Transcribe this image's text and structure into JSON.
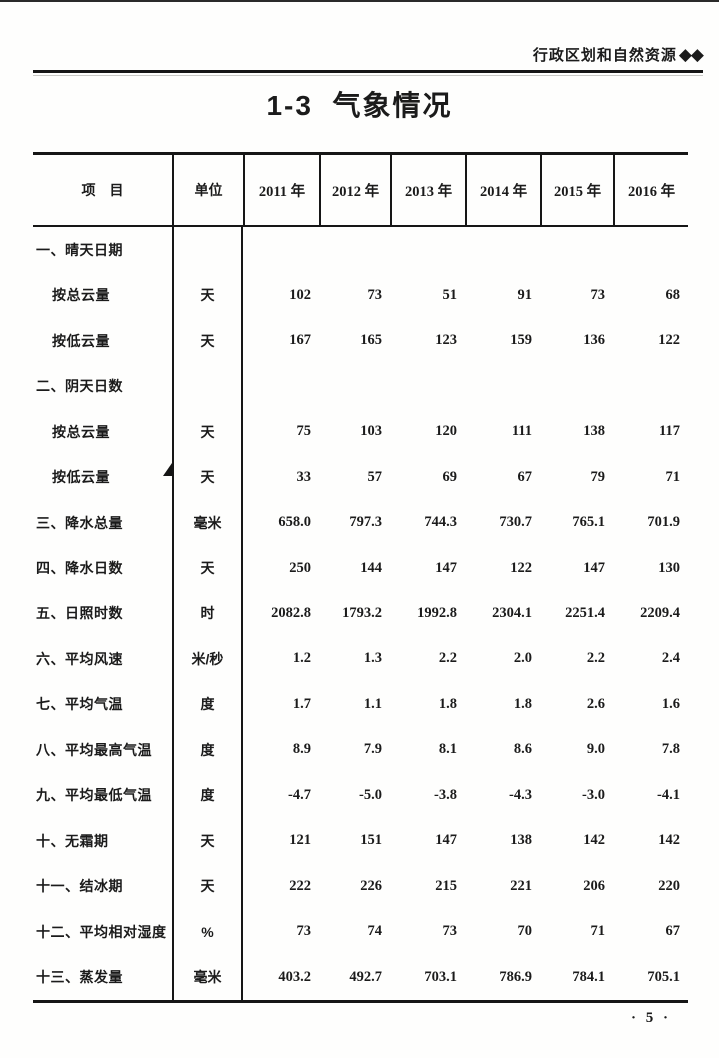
{
  "page": {
    "header_right": "行政区划和自然资源",
    "header_diamonds": "◆◆",
    "title": "1-3  气象情况",
    "page_number": "· 5 ·"
  },
  "table": {
    "columns": [
      "项　目",
      "单位",
      "2011 年",
      "2012 年",
      "2013 年",
      "2014 年",
      "2015 年",
      "2016 年"
    ],
    "rows": [
      {
        "item": "一、晴天日期",
        "indent": false,
        "unit": "",
        "values": [
          "",
          "",
          "",
          "",
          "",
          ""
        ]
      },
      {
        "item": "按总云量",
        "indent": true,
        "unit": "天",
        "values": [
          "102",
          "73",
          "51",
          "91",
          "73",
          "68"
        ]
      },
      {
        "item": "按低云量",
        "indent": true,
        "unit": "天",
        "values": [
          "167",
          "165",
          "123",
          "159",
          "136",
          "122"
        ]
      },
      {
        "item": "二、阴天日数",
        "indent": false,
        "unit": "",
        "values": [
          "",
          "",
          "",
          "",
          "",
          ""
        ]
      },
      {
        "item": "按总云量",
        "indent": true,
        "unit": "天",
        "values": [
          "75",
          "103",
          "120",
          "111",
          "138",
          "117"
        ]
      },
      {
        "item": "按低云量",
        "indent": true,
        "unit": "天",
        "values": [
          "33",
          "57",
          "69",
          "67",
          "79",
          "71"
        ]
      },
      {
        "item": "三、降水总量",
        "indent": false,
        "unit": "毫米",
        "values": [
          "658.0",
          "797.3",
          "744.3",
          "730.7",
          "765.1",
          "701.9"
        ]
      },
      {
        "item": "四、降水日数",
        "indent": false,
        "unit": "天",
        "values": [
          "250",
          "144",
          "147",
          "122",
          "147",
          "130"
        ]
      },
      {
        "item": "五、日照时数",
        "indent": false,
        "unit": "时",
        "values": [
          "2082.8",
          "1793.2",
          "1992.8",
          "2304.1",
          "2251.4",
          "2209.4"
        ]
      },
      {
        "item": "六、平均风速",
        "indent": false,
        "unit": "米/秒",
        "values": [
          "1.2",
          "1.3",
          "2.2",
          "2.0",
          "2.2",
          "2.4"
        ]
      },
      {
        "item": "七、平均气温",
        "indent": false,
        "unit": "度",
        "values": [
          "1.7",
          "1.1",
          "1.8",
          "1.8",
          "2.6",
          "1.6"
        ]
      },
      {
        "item": "八、平均最高气温",
        "indent": false,
        "unit": "度",
        "values": [
          "8.9",
          "7.9",
          "8.1",
          "8.6",
          "9.0",
          "7.8"
        ]
      },
      {
        "item": "九、平均最低气温",
        "indent": false,
        "unit": "度",
        "values": [
          "-4.7",
          "-5.0",
          "-3.8",
          "-4.3",
          "-3.0",
          "-4.1"
        ]
      },
      {
        "item": "十、无霜期",
        "indent": false,
        "unit": "天",
        "values": [
          "121",
          "151",
          "147",
          "138",
          "142",
          "142"
        ]
      },
      {
        "item": "十一、结冰期",
        "indent": false,
        "unit": "天",
        "values": [
          "222",
          "226",
          "215",
          "221",
          "206",
          "220"
        ]
      },
      {
        "item": "十二、平均相对湿度",
        "indent": false,
        "unit": "%",
        "values": [
          "73",
          "74",
          "73",
          "70",
          "71",
          "67"
        ]
      },
      {
        "item": "十三、蒸发量",
        "indent": false,
        "unit": "毫米",
        "values": [
          "403.2",
          "492.7",
          "703.1",
          "786.9",
          "784.1",
          "705.1"
        ]
      }
    ]
  }
}
